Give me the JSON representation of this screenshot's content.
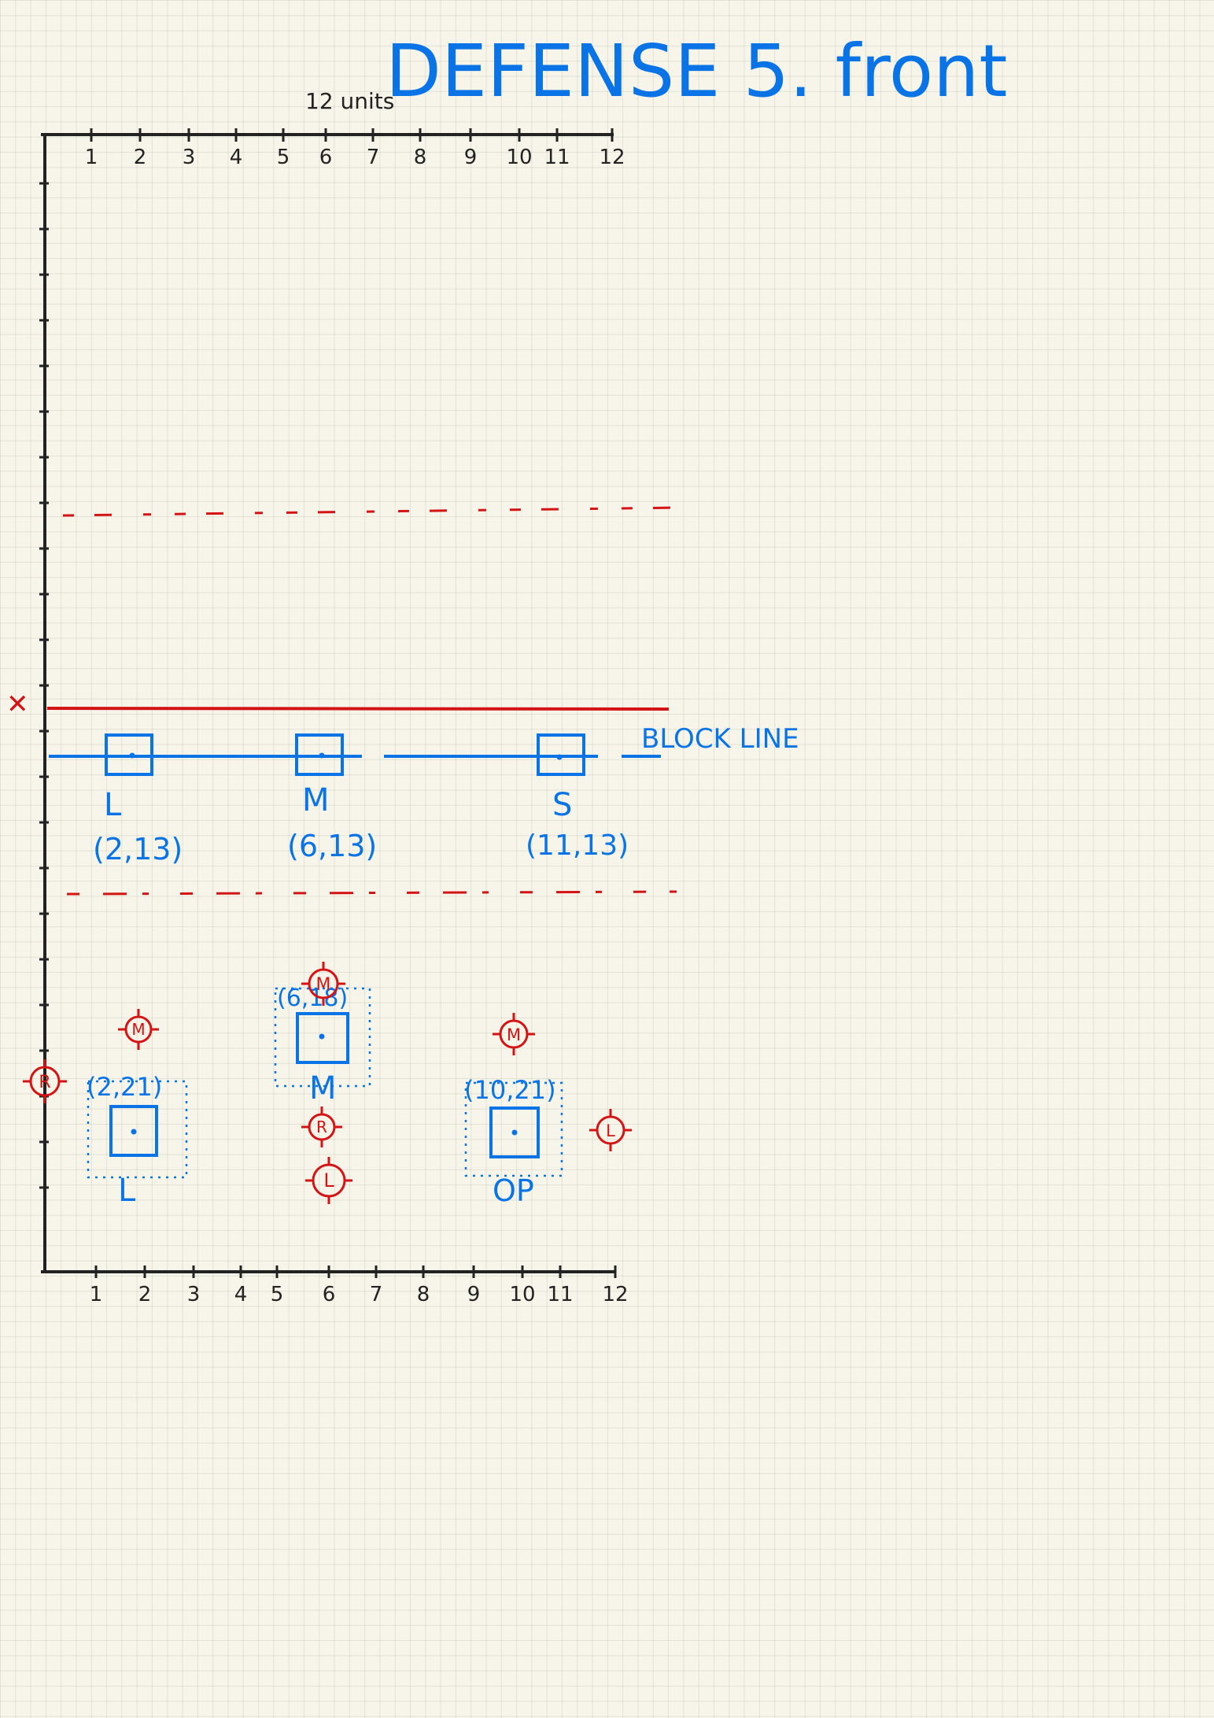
{
  "title": "DEFENSE 5. front",
  "units_note": "12 units",
  "axis": {
    "top_ticks": [
      "1",
      "2",
      "3",
      "4",
      "5",
      "6",
      "7",
      "8",
      "9",
      "10",
      "11",
      "12"
    ],
    "bottom_ticks": [
      "1",
      "2",
      "3",
      "4",
      "5",
      "6",
      "7",
      "8",
      "9",
      "10",
      "11",
      "12"
    ]
  },
  "block_line_label": "BLOCK LINE",
  "block_line_players": [
    {
      "label": "L",
      "coord": "(2,13)"
    },
    {
      "label": "M",
      "coord": "(6,13)"
    },
    {
      "label": "S",
      "coord": "(11,13)"
    }
  ],
  "defenders": [
    {
      "label": "L",
      "coord": "(2,21)"
    },
    {
      "label": "M",
      "coord": "(6,18)"
    },
    {
      "label": "OP",
      "coord": "(10,21)"
    }
  ],
  "attackers": [
    {
      "letter": "R"
    },
    {
      "letter": "M"
    },
    {
      "letter": "M"
    },
    {
      "letter": "R"
    },
    {
      "letter": "L"
    },
    {
      "letter": "M"
    },
    {
      "letter": "L"
    }
  ],
  "colors": {
    "blue": "#0a74e6",
    "red": "#d41414",
    "axis": "#222222",
    "paper": "#f7f5ea"
  }
}
